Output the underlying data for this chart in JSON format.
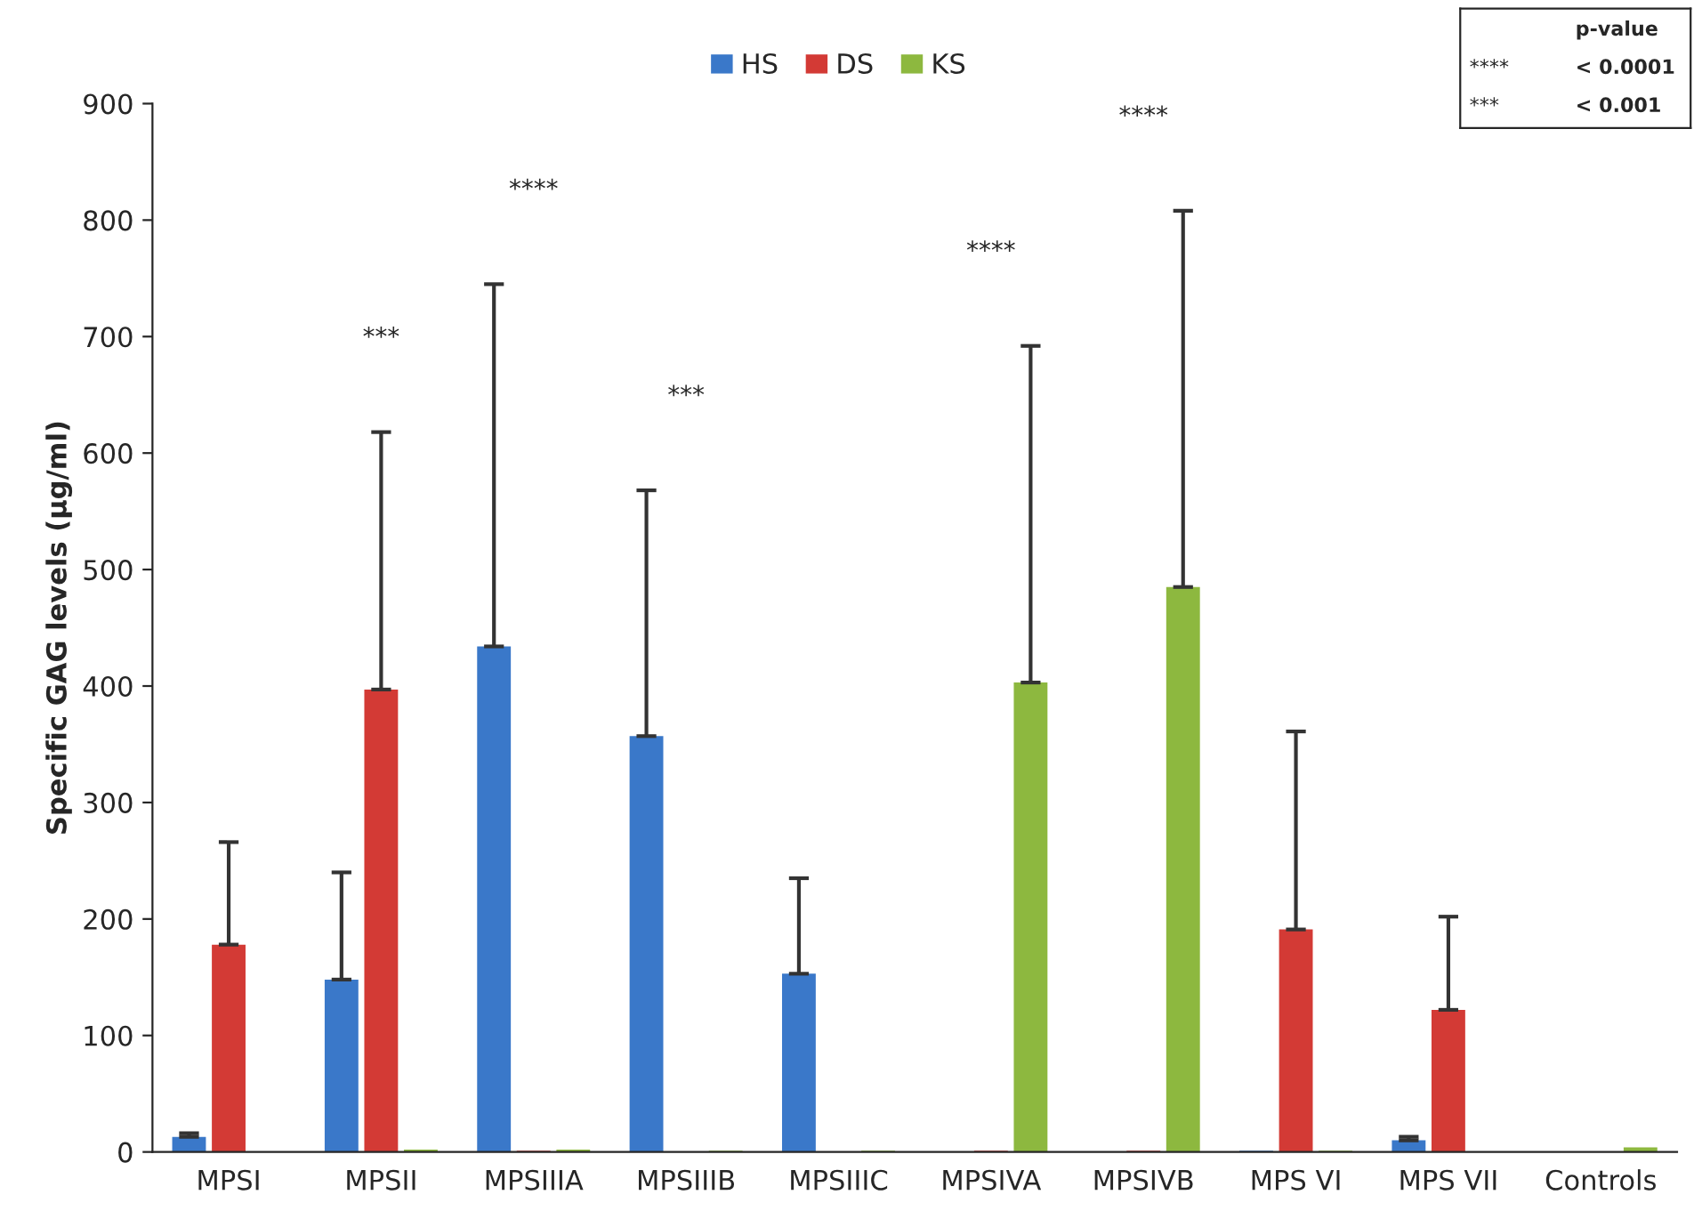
{
  "chart_data": {
    "type": "bar",
    "ylabel": "Specific GAG levels (µg/ml)",
    "categories": [
      "MPSI",
      "MPSII",
      "MPSIIIA",
      "MPSIIIB",
      "MPSIIIC",
      "MPSIVA",
      "MPSIVB",
      "MPS VI",
      "MPS VII",
      "Controls"
    ],
    "series": [
      {
        "name": "HS",
        "color": "#3a78c9",
        "values": [
          13,
          148,
          434,
          357,
          153,
          null,
          null,
          1,
          10,
          null
        ],
        "errors": [
          [
            13,
            16
          ],
          [
            148,
            240
          ],
          [
            434,
            745
          ],
          [
            357,
            568
          ],
          [
            153,
            235
          ],
          null,
          null,
          null,
          [
            10,
            13
          ],
          null
        ]
      },
      {
        "name": "DS",
        "color": "#d33a35",
        "values": [
          178,
          397,
          1,
          null,
          null,
          1,
          1,
          191,
          122,
          null
        ],
        "errors": [
          [
            178,
            266
          ],
          [
            397,
            618
          ],
          null,
          null,
          null,
          null,
          null,
          [
            191,
            361
          ],
          [
            122,
            202
          ],
          null
        ]
      },
      {
        "name": "KS",
        "color": "#8db83f",
        "values": [
          null,
          2,
          2,
          1,
          1,
          403,
          485,
          1,
          null,
          4
        ],
        "errors": [
          null,
          null,
          null,
          null,
          null,
          [
            403,
            692
          ],
          [
            485,
            808
          ],
          null,
          null,
          null
        ]
      }
    ],
    "ylim": [
      0,
      900
    ],
    "yticks": [
      0,
      100,
      200,
      300,
      400,
      500,
      600,
      700,
      800,
      900
    ],
    "legend": "top",
    "annotations": [
      "***",
      "****",
      "***",
      "****",
      "****",
      "p-value",
      "****",
      "< 0.0001",
      "***",
      "< 0.001"
    ]
  }
}
